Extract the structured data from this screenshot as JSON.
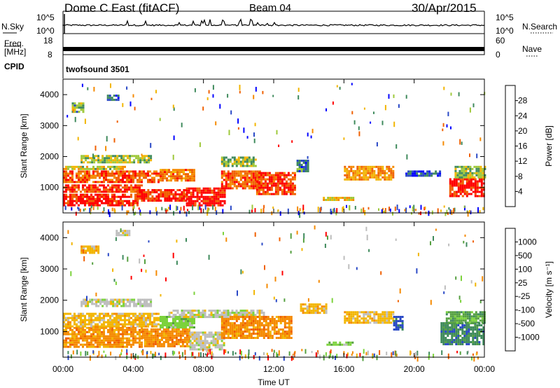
{
  "header": {
    "station": "Dome C East (fitACF)",
    "beam": "Beam 04",
    "date": "30/Apr/2015"
  },
  "side_labels": {
    "nsky": "N.Sky",
    "nsearch": "N.Search",
    "freq_line1": "Freq.",
    "freq_line2": "[MHz]",
    "nave": "Nave",
    "cpid": "CPID",
    "cpid_value": "twofsound 3501"
  },
  "noise_axis": {
    "left_top": "10^5",
    "left_bottom": "10^0",
    "right_top": "10^5",
    "right_bottom": "10^0"
  },
  "freq_axis": {
    "left_top": "18",
    "left_bottom": "8",
    "right_top": "60",
    "right_bottom": "0"
  },
  "chart_data": [
    {
      "type": "heatmap",
      "panel": "power",
      "xlabel": "Time UT",
      "ylabel": "Slant Range [km]",
      "xlim": [
        0,
        24
      ],
      "ylim": [
        180,
        4500
      ],
      "x_tick_labels": [
        "00:00",
        "04:00",
        "08:00",
        "12:00",
        "16:00",
        "20:00",
        "00:00"
      ],
      "x_ticks": [
        0,
        4,
        8,
        12,
        16,
        20,
        24
      ],
      "y_ticks": [
        1000,
        2000,
        3000,
        4000
      ],
      "colorbar": {
        "label": "Power [dB]",
        "tick_labels": [
          "4",
          "8",
          "12",
          "16",
          "20",
          "24",
          "28"
        ],
        "tick_values": [
          4,
          8,
          12,
          16,
          20,
          24,
          28
        ],
        "range": [
          0,
          32
        ],
        "colors": [
          "#0000ff",
          "#2a49c6",
          "#3f8a5c",
          "#9ec83a",
          "#f2b500",
          "#f58a00",
          "#f06000",
          "#ff0000"
        ]
      },
      "regions": [
        {
          "t0": 0.0,
          "t1": 4.2,
          "r0": 400,
          "r1": 800,
          "level": 30
        },
        {
          "t0": 0.0,
          "t1": 4.5,
          "r0": 850,
          "r1": 1100,
          "level": 28
        },
        {
          "t0": 0.0,
          "t1": 5.5,
          "r0": 1150,
          "r1": 1550,
          "level": 26
        },
        {
          "t0": 0.0,
          "t1": 3.5,
          "r0": 1600,
          "r1": 1700,
          "level": 16
        },
        {
          "t0": 1.0,
          "t1": 5.0,
          "r0": 1800,
          "r1": 2050,
          "level": 14
        },
        {
          "t0": 4.2,
          "t1": 7.0,
          "r0": 600,
          "r1": 950,
          "level": 29
        },
        {
          "t0": 5.5,
          "t1": 7.5,
          "r0": 1250,
          "r1": 1600,
          "level": 24
        },
        {
          "t0": 7.0,
          "t1": 9.2,
          "r0": 450,
          "r1": 1000,
          "level": 30
        },
        {
          "t0": 9.0,
          "t1": 11.2,
          "r0": 1000,
          "r1": 1550,
          "level": 26
        },
        {
          "t0": 9.0,
          "t1": 11.0,
          "r0": 1700,
          "r1": 2000,
          "level": 14
        },
        {
          "t0": 11.0,
          "t1": 13.2,
          "r0": 800,
          "r1": 1500,
          "level": 28
        },
        {
          "t0": 13.3,
          "t1": 14.0,
          "r0": 1500,
          "r1": 1900,
          "level": 8
        },
        {
          "t0": 14.8,
          "t1": 16.5,
          "r0": 580,
          "r1": 700,
          "level": 18
        },
        {
          "t0": 16.0,
          "t1": 18.8,
          "r0": 1250,
          "r1": 1700,
          "level": 22
        },
        {
          "t0": 19.5,
          "t1": 21.5,
          "r0": 1400,
          "r1": 1550,
          "level": 6
        },
        {
          "t0": 22.0,
          "t1": 24.0,
          "r0": 700,
          "r1": 1300,
          "level": 30
        },
        {
          "t0": 22.3,
          "t1": 24.0,
          "r0": 1300,
          "r1": 1700,
          "level": 14
        },
        {
          "t0": 2.5,
          "t1": 3.2,
          "r0": 3800,
          "r1": 4000,
          "level": 8
        },
        {
          "t0": 0.5,
          "t1": 1.2,
          "r0": 3450,
          "r1": 3750,
          "level": 12
        }
      ]
    },
    {
      "type": "heatmap",
      "panel": "velocity",
      "xlabel": "Time UT",
      "ylabel": "Slant Range [km]",
      "xlim": [
        0,
        24
      ],
      "ylim": [
        180,
        4500
      ],
      "x_tick_labels": [
        "00:00",
        "04:00",
        "08:00",
        "12:00",
        "16:00",
        "20:00",
        "00:00"
      ],
      "x_ticks": [
        0,
        4,
        8,
        12,
        16,
        20,
        24
      ],
      "y_ticks": [
        1000,
        2000,
        3000,
        4000
      ],
      "colorbar": {
        "label": "Velocity [m s^-1]",
        "tick_labels": [
          "1000",
          "500",
          "100",
          "25",
          "-25",
          "-100",
          "-500",
          "-1000"
        ],
        "colors": [
          "#2a49c6",
          "#3f8a5c",
          "#55a040",
          "#7cd23c",
          "#bdbdbd",
          "#f2b500",
          "#f58a00",
          "#f06000",
          "#ff0000"
        ]
      },
      "regions": [
        {
          "t0": 0.0,
          "t1": 4.5,
          "r0": 500,
          "r1": 1150,
          "level": 6
        },
        {
          "t0": 0.0,
          "t1": 5.5,
          "r0": 1150,
          "r1": 1600,
          "level": 5
        },
        {
          "t0": 4.5,
          "t1": 7.2,
          "r0": 550,
          "r1": 1100,
          "level": 6
        },
        {
          "t0": 5.5,
          "t1": 7.5,
          "r0": 1100,
          "r1": 1500,
          "level": 3
        },
        {
          "t0": 1.0,
          "t1": 5.0,
          "r0": 1800,
          "r1": 2050,
          "level": 4
        },
        {
          "t0": 7.2,
          "t1": 9.2,
          "r0": 450,
          "r1": 1000,
          "level": 4
        },
        {
          "t0": 6.0,
          "t1": 11.5,
          "r0": 1450,
          "r1": 1700,
          "level": 4
        },
        {
          "t0": 9.0,
          "t1": 13.0,
          "r0": 800,
          "r1": 1500,
          "level": 6
        },
        {
          "t0": 13.5,
          "t1": 15.0,
          "r0": 1600,
          "r1": 1900,
          "level": 5
        },
        {
          "t0": 15.0,
          "t1": 16.5,
          "r0": 560,
          "r1": 680,
          "level": 3
        },
        {
          "t0": 16.0,
          "t1": 18.8,
          "r0": 1250,
          "r1": 1650,
          "level": 5
        },
        {
          "t0": 18.8,
          "t1": 19.3,
          "r0": 1050,
          "r1": 1500,
          "level": 0
        },
        {
          "t0": 21.5,
          "t1": 24.0,
          "r0": 600,
          "r1": 1300,
          "level": 1
        },
        {
          "t0": 21.8,
          "t1": 24.0,
          "r0": 1300,
          "r1": 1650,
          "level": 2
        },
        {
          "t0": 3.0,
          "t1": 3.8,
          "r0": 4050,
          "r1": 4250,
          "level": 4
        },
        {
          "t0": 1.0,
          "t1": 2.0,
          "r0": 3500,
          "r1": 3750,
          "level": 5
        }
      ]
    }
  ]
}
